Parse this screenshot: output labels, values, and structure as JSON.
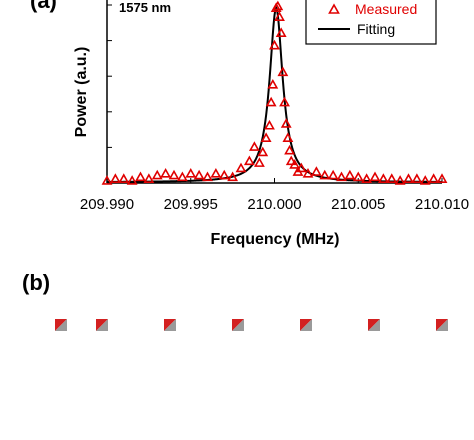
{
  "chart_data": {
    "type": "scatter",
    "xlabel": "Frequency (MHz)",
    "ylabel": "Power (a.u.)",
    "xlim": [
      209.99,
      210.01
    ],
    "ylim": [
      0,
      1
    ],
    "xticks": [
      "209.990",
      "209.995",
      "210.000",
      "210.005",
      "210.010"
    ],
    "legend_position": "top-right",
    "annotation": "1575 nm",
    "panel_a_label": "(a)",
    "panel_b_label": "(b)",
    "colors": {
      "measured": "#e00000",
      "fitting": "#000000"
    },
    "series": [
      {
        "name": "Measured",
        "style": "open-triangle",
        "color": "#e00000",
        "x": [
          209.99,
          209.9905,
          209.991,
          209.9915,
          209.992,
          209.9925,
          209.993,
          209.9935,
          209.994,
          209.9945,
          209.995,
          209.9955,
          209.996,
          209.9965,
          209.997,
          209.9975,
          209.998,
          209.9985,
          209.9988,
          209.9991,
          209.9993,
          209.9995,
          209.9997,
          209.9998,
          209.9999,
          210.0,
          210.0001,
          210.0002,
          210.0003,
          210.0004,
          210.0005,
          210.0006,
          210.0007,
          210.0008,
          210.0009,
          210.001,
          210.0012,
          210.0014,
          210.0016,
          210.002,
          210.0025,
          210.003,
          210.0035,
          210.004,
          210.0045,
          210.005,
          210.0055,
          210.006,
          210.0065,
          210.007,
          210.0075,
          210.008,
          210.0085,
          210.009,
          210.0095,
          210.01
        ],
        "y": [
          0.01,
          0.02,
          0.02,
          0.01,
          0.03,
          0.02,
          0.04,
          0.05,
          0.04,
          0.03,
          0.05,
          0.04,
          0.03,
          0.05,
          0.04,
          0.03,
          0.08,
          0.12,
          0.2,
          0.11,
          0.17,
          0.25,
          0.32,
          0.45,
          0.55,
          0.77,
          0.98,
          0.99,
          0.93,
          0.84,
          0.62,
          0.45,
          0.33,
          0.25,
          0.18,
          0.12,
          0.1,
          0.06,
          0.08,
          0.05,
          0.06,
          0.04,
          0.04,
          0.03,
          0.04,
          0.03,
          0.02,
          0.03,
          0.02,
          0.02,
          0.01,
          0.02,
          0.02,
          0.01,
          0.02,
          0.02
        ]
      },
      {
        "name": "Fitting",
        "style": "line",
        "color": "#000000",
        "center": 210.0001,
        "fwhm": 0.00095,
        "peak": 1.0
      }
    ]
  }
}
